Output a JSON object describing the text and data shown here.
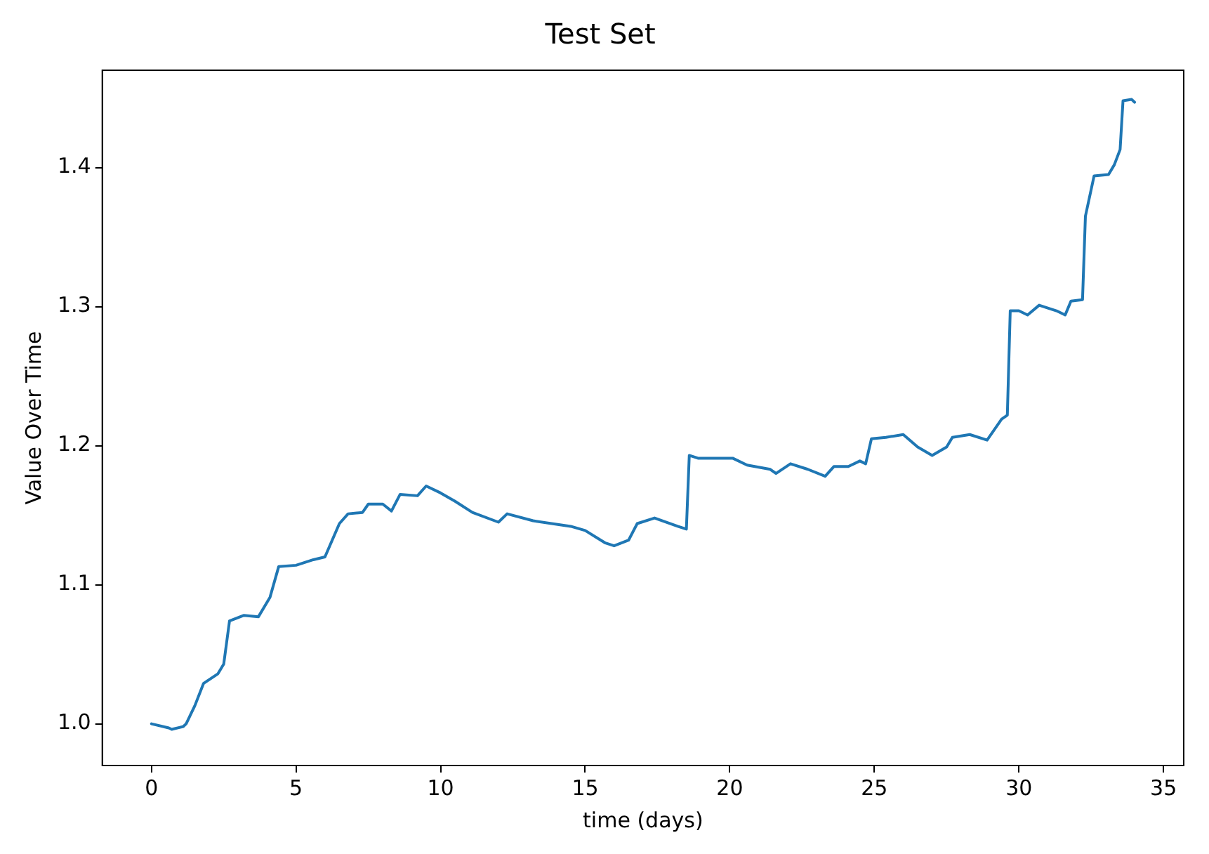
{
  "chart_data": {
    "type": "line",
    "title": "Test Set",
    "xlabel": "time (days)",
    "ylabel": "Value Over Time",
    "x": [
      0,
      0.6,
      0.7,
      1.1,
      1.2,
      1.5,
      1.8,
      2.3,
      2.5,
      2.7,
      3.2,
      3.7,
      4.1,
      4.4,
      5.0,
      5.6,
      6.0,
      6.5,
      6.8,
      7.3,
      7.5,
      8.0,
      8.3,
      8.6,
      9.2,
      9.5,
      10.0,
      10.5,
      11.1,
      12.0,
      12.3,
      13.2,
      14.5,
      15.0,
      15.7,
      16.0,
      16.5,
      16.8,
      17.4,
      18.2,
      18.5,
      18.6,
      18.9,
      20.1,
      20.6,
      21.4,
      21.6,
      22.1,
      22.7,
      23.3,
      23.6,
      24.1,
      24.5,
      24.7,
      24.9,
      25.4,
      26.0,
      26.5,
      27.0,
      27.5,
      27.7,
      28.0,
      28.3,
      28.9,
      29.4,
      29.6,
      29.7,
      30.0,
      30.3,
      30.7,
      31.3,
      31.6,
      31.8,
      32.2,
      32.3,
      32.6,
      33.1,
      33.3,
      33.5,
      33.6,
      33.9,
      34.0
    ],
    "series": [
      {
        "color": "#1f77b4",
        "values": [
          1.0,
          0.997,
          0.996,
          0.998,
          1.0,
          1.013,
          1.029,
          1.036,
          1.043,
          1.074,
          1.078,
          1.077,
          1.091,
          1.113,
          1.114,
          1.118,
          1.12,
          1.144,
          1.151,
          1.152,
          1.158,
          1.158,
          1.153,
          1.165,
          1.164,
          1.171,
          1.166,
          1.16,
          1.152,
          1.145,
          1.151,
          1.146,
          1.142,
          1.139,
          1.13,
          1.128,
          1.132,
          1.144,
          1.148,
          1.142,
          1.14,
          1.193,
          1.191,
          1.191,
          1.186,
          1.183,
          1.18,
          1.187,
          1.183,
          1.178,
          1.185,
          1.185,
          1.189,
          1.187,
          1.205,
          1.206,
          1.208,
          1.199,
          1.193,
          1.199,
          1.206,
          1.207,
          1.208,
          1.204,
          1.219,
          1.222,
          1.297,
          1.297,
          1.294,
          1.301,
          1.297,
          1.294,
          1.304,
          1.305,
          1.365,
          1.394,
          1.395,
          1.402,
          1.413,
          1.448,
          1.449,
          1.447
        ]
      }
    ],
    "xlim": [
      -1.7,
      35.7
    ],
    "xticks": [
      0,
      5,
      10,
      15,
      20,
      25,
      30,
      35
    ],
    "ylim": [
      0.97,
      1.47
    ],
    "yticks": [
      {
        "value": 1.0,
        "label": "1.0"
      },
      {
        "value": 1.1,
        "label": "1.1"
      },
      {
        "value": 1.2,
        "label": "1.2"
      },
      {
        "value": 1.3,
        "label": "1.3"
      },
      {
        "value": 1.4,
        "label": "1.4"
      }
    ],
    "grid": false,
    "legend": false,
    "marker": "none",
    "line_style": "solid"
  }
}
